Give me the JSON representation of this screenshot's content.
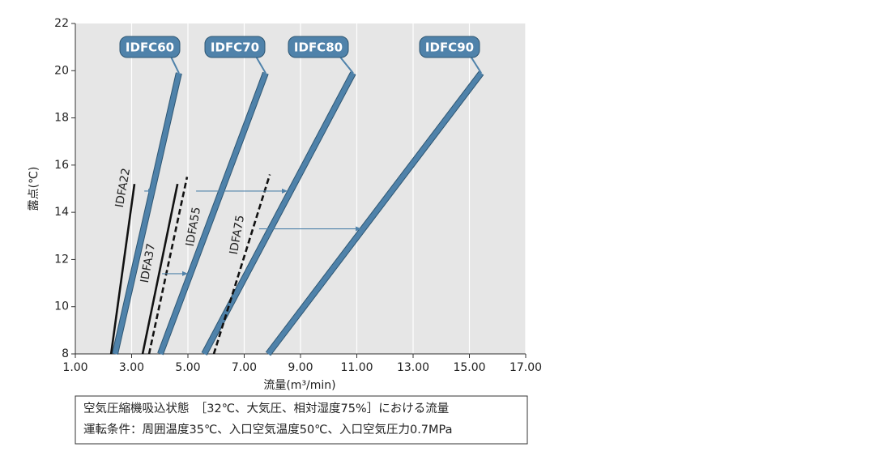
{
  "chart_data": {
    "type": "line",
    "x_label": "流量(m³/min)",
    "y_label": "露点(℃)",
    "xlim": [
      1,
      17
    ],
    "ylim": [
      8,
      22
    ],
    "xticks": [
      {
        "value": 1,
        "label": "1.00"
      },
      {
        "value": 3,
        "label": "3.00"
      },
      {
        "value": 5,
        "label": "5.00"
      },
      {
        "value": 7,
        "label": "7.00"
      },
      {
        "value": 9,
        "label": "9.00"
      },
      {
        "value": 11,
        "label": "11.00"
      },
      {
        "value": 13,
        "label": "13.00"
      },
      {
        "value": 15,
        "label": "15.00"
      },
      {
        "value": 17,
        "label": "17.00"
      }
    ],
    "yticks": [
      8,
      10,
      12,
      14,
      16,
      18,
      20,
      22
    ],
    "grid": "x",
    "series": [
      {
        "name": "IDFC60",
        "color": "#4f82aa",
        "dashed": false,
        "x": [
          2.41,
          4.68
        ],
        "values": [
          8,
          19.9
        ]
      },
      {
        "name": "IDFC70",
        "color": "#4f82aa",
        "dashed": false,
        "x": [
          4.02,
          7.76
        ],
        "values": [
          8,
          19.9
        ]
      },
      {
        "name": "IDFC80",
        "color": "#4f82aa",
        "dashed": false,
        "x": [
          5.58,
          10.87
        ],
        "values": [
          8,
          19.9
        ]
      },
      {
        "name": "IDFC90",
        "color": "#4f82aa",
        "dashed": false,
        "x": [
          7.85,
          15.42
        ],
        "values": [
          8,
          19.9
        ]
      },
      {
        "name": "IDFA22",
        "color": "#111111",
        "dashed": false,
        "x": [
          2.27,
          3.1
        ],
        "values": [
          8,
          15.2
        ]
      },
      {
        "name": "IDFA37",
        "color": "#111111",
        "dashed": false,
        "x": [
          3.39,
          4.63
        ],
        "values": [
          8,
          15.2
        ]
      },
      {
        "name": "IDFA55",
        "color": "#111111",
        "dashed": true,
        "x": [
          3.62,
          4.97
        ],
        "values": [
          8,
          15.5
        ]
      },
      {
        "name": "IDFA75",
        "color": "#111111",
        "dashed": true,
        "x": [
          5.92,
          7.91
        ],
        "values": [
          8,
          15.6
        ]
      }
    ],
    "arrows": [
      {
        "x1": 3.45,
        "x2": 3.79,
        "y": 14.9
      },
      {
        "x1": 5.29,
        "x2": 8.54,
        "y": 14.9
      },
      {
        "x1": 4.08,
        "x2": 5.0,
        "y": 11.4
      },
      {
        "x1": 7.53,
        "x2": 11.16,
        "y": 13.3
      }
    ],
    "notes": [
      "空気圧縮機吸込状態　［32℃、大気圧、相対湿度75%］における流量",
      "運転条件：周囲温度35℃、入口空気温度50℃、入口空気圧力0.7MPa"
    ]
  }
}
